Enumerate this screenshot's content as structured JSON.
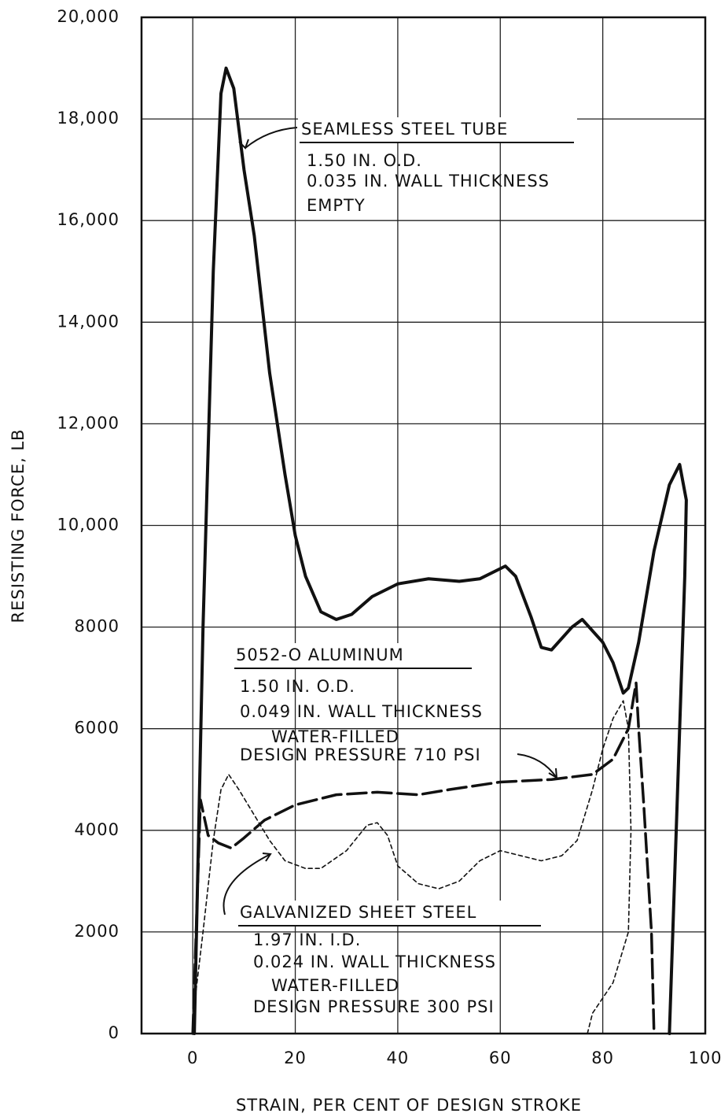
{
  "chart_data": {
    "type": "line",
    "x_label": "STRAIN, PER CENT OF DESIGN STROKE",
    "y_label": "RESISTING FORCE, LB",
    "xlim": [
      -10,
      100
    ],
    "xticks": [
      0,
      20,
      40,
      60,
      80,
      100
    ],
    "ylim": [
      0,
      20000
    ],
    "yticks": [
      0,
      2000,
      4000,
      6000,
      8000,
      {
        "value": 10000,
        "label": "10,000"
      },
      {
        "value": 12000,
        "label": "12,000"
      },
      {
        "value": 14000,
        "label": "14,000"
      },
      {
        "value": 16000,
        "label": "16,000"
      },
      {
        "value": 18000,
        "label": "18,000"
      },
      {
        "value": 20000,
        "label": "20,000"
      }
    ],
    "grid": true,
    "series": [
      {
        "name": "SEAMLESS STEEL TUBE",
        "color": "#111111",
        "style": "solid",
        "x": [
          0.3,
          2,
          4,
          5.5,
          6.5,
          8,
          10,
          12,
          15,
          18,
          20,
          22,
          25,
          28,
          31,
          35,
          40,
          46,
          52,
          56,
          60,
          61,
          63,
          66,
          68,
          70,
          74,
          76,
          80,
          82,
          84,
          85,
          87,
          90,
          93,
          95,
          96.3,
          96,
          95,
          94,
          93
        ],
        "values": [
          0,
          8000,
          15000,
          18500,
          19000,
          18600,
          17000,
          15700,
          13000,
          11000,
          9800,
          9000,
          8300,
          8150,
          8250,
          8600,
          8850,
          8950,
          8900,
          8950,
          9150,
          9200,
          9000,
          8200,
          7600,
          7550,
          8000,
          8150,
          7700,
          7300,
          6700,
          6800,
          7700,
          9500,
          10800,
          11200,
          10500,
          9000,
          6000,
          3000,
          0
        ]
      },
      {
        "name": "5052-O ALUMINUM",
        "color": "#111111",
        "style": "long-dash",
        "x": [
          0,
          1.5,
          3,
          5,
          7.5,
          10,
          14,
          20,
          28,
          36,
          44,
          50,
          60,
          70,
          78,
          82,
          85,
          86.5,
          87,
          88,
          89.5,
          90
        ],
        "values": [
          0,
          4600,
          3900,
          3750,
          3650,
          3850,
          4200,
          4500,
          4700,
          4750,
          4700,
          4800,
          4950,
          5000,
          5100,
          5400,
          6000,
          6900,
          6000,
          4500,
          2000,
          0
        ]
      },
      {
        "name": "GALVANIZED SHEET STEEL",
        "color": "#111111",
        "style": "short-dash",
        "x": [
          0,
          2,
          4,
          5.5,
          7,
          9,
          12,
          15,
          18,
          22,
          25,
          30,
          34,
          36,
          38,
          40,
          44,
          48,
          52,
          56,
          60,
          64,
          68,
          72,
          75,
          78,
          80,
          82,
          84,
          85,
          85.5,
          85,
          82,
          78,
          77
        ],
        "values": [
          300,
          2000,
          3800,
          4800,
          5100,
          4800,
          4300,
          3800,
          3400,
          3250,
          3250,
          3600,
          4100,
          4150,
          3900,
          3300,
          2950,
          2850,
          3000,
          3400,
          3600,
          3500,
          3400,
          3500,
          3800,
          4800,
          5600,
          6200,
          6550,
          6000,
          4000,
          2000,
          1000,
          400,
          0
        ]
      }
    ],
    "annotations": [
      [
        "1.50 IN. O.D.",
        "0.035 IN. WALL THICKNESS",
        "EMPTY"
      ],
      [
        "1.50 IN. O.D.",
        "0.049 IN. WALL THICKNESS",
        "WATER-FILLED",
        "DESIGN PRESSURE 710 PSI"
      ],
      [
        "1.97 IN. I.D.",
        "0.024 IN. WALL THICKNESS",
        "WATER-FILLED",
        "DESIGN PRESSURE 300 PSI"
      ]
    ]
  }
}
